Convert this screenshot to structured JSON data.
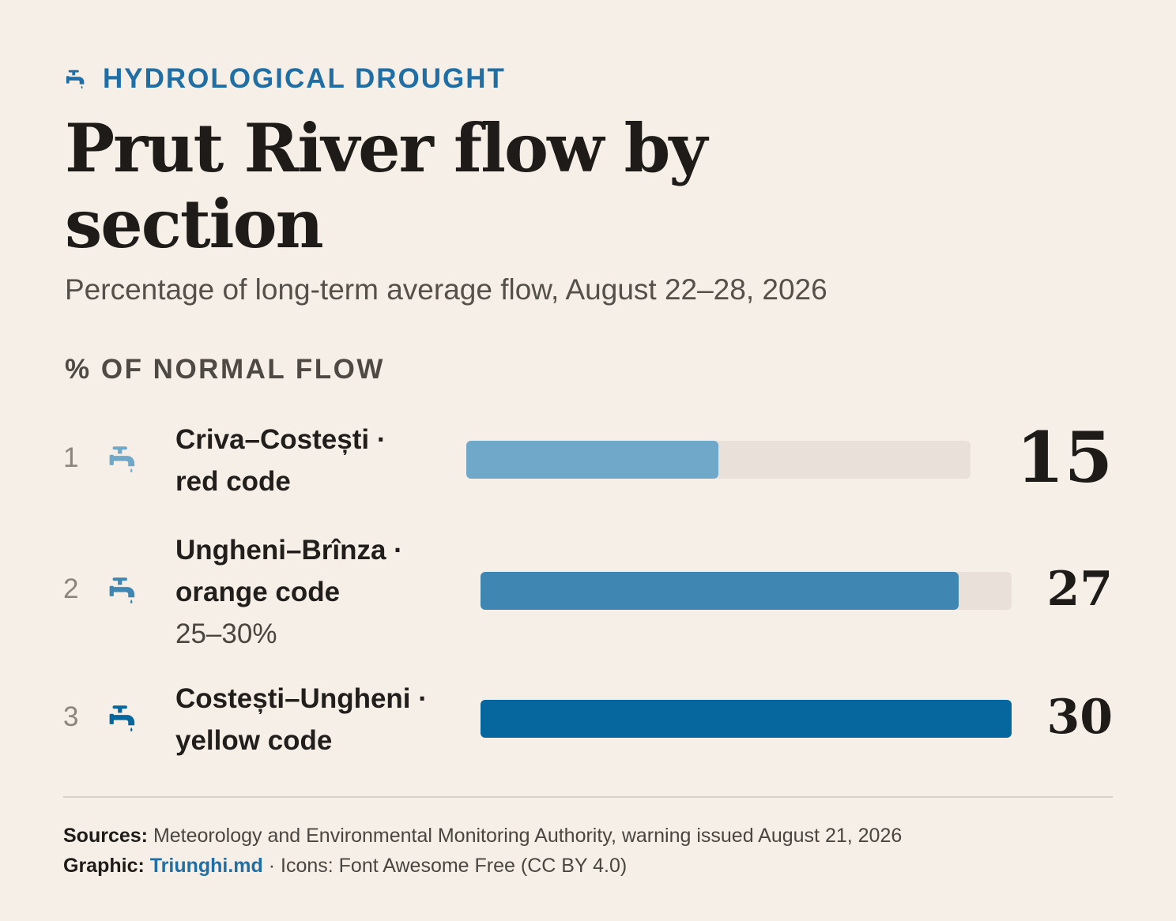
{
  "header": {
    "kicker": "HYDROLOGICAL DROUGHT",
    "kicker_icon": "faucet-drip-icon",
    "title": "Prut River flow by section",
    "subtitle": "Percentage of long-term average flow, August 22–28, 2026",
    "axis_label": "% OF NORMAL FLOW"
  },
  "chart_data": {
    "type": "bar",
    "orientation": "horizontal",
    "categories": [
      "Criva–Costești",
      "Ungheni–Brînza",
      "Costești–Ungheni"
    ],
    "values": [
      15,
      27,
      30
    ],
    "ylabel": "% OF NORMAL FLOW",
    "rows": [
      {
        "rank": "1",
        "name": "Criva–Costești ·",
        "code": "red code",
        "note": "",
        "value": 15,
        "value_label": "15",
        "color": "#70a8c9",
        "icon": "faucet-drip-icon"
      },
      {
        "rank": "2",
        "name": "Ungheni–Brînza ·",
        "code": "orange code",
        "note": "25–30%",
        "value": 27,
        "value_label": "27",
        "color": "#3f87b2",
        "icon": "faucet-drip-icon"
      },
      {
        "rank": "3",
        "name": "Costești–Ungheni ·",
        "code": "yellow code",
        "note": "",
        "value": 30,
        "value_label": "30",
        "color": "#05679d",
        "icon": "faucet-drip-icon"
      }
    ],
    "track_color": "#e8e0d9",
    "grid": false
  },
  "footer": {
    "sources_label": "Sources:",
    "sources_text": "Meteorology and Environmental Monitoring Authority, warning issued August 21, 2026",
    "graphic_label": "Graphic:",
    "graphic_link": "Triunghi.md",
    "icons_text": "· Icons: Font Awesome Free (CC BY 4.0)"
  }
}
